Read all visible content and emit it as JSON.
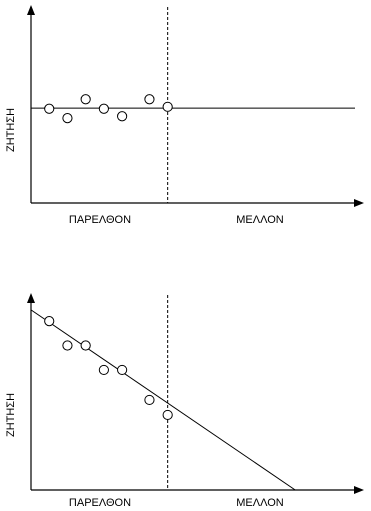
{
  "chart_data": [
    {
      "type": "scatter",
      "ylabel": "ΖΗΤΗΣΗ",
      "x_regions": [
        "ΠΑΡΕΛΘΟΝ",
        "ΜΕΛΛΟΝ"
      ],
      "trend": "horizontal",
      "points": [
        {
          "x": 1,
          "y": 5.0
        },
        {
          "x": 2,
          "y": 4.5
        },
        {
          "x": 3,
          "y": 5.5
        },
        {
          "x": 4,
          "y": 5.0
        },
        {
          "x": 5,
          "y": 4.6
        },
        {
          "x": 6.5,
          "y": 5.5
        },
        {
          "x": 7.5,
          "y": 5.1
        }
      ],
      "divider_x": 7.5,
      "xlim": [
        0,
        18
      ],
      "ylim": [
        0,
        10.5
      ]
    },
    {
      "type": "scatter",
      "ylabel": "ΖΗΤΗΣΗ",
      "x_regions": [
        "ΠΑΡΕΛΘΟΝ",
        "ΜΕΛΛΟΝ"
      ],
      "trend": "decreasing",
      "points": [
        {
          "x": 1,
          "y": 9.0
        },
        {
          "x": 2,
          "y": 7.7
        },
        {
          "x": 3,
          "y": 7.7
        },
        {
          "x": 4,
          "y": 6.4
        },
        {
          "x": 5,
          "y": 6.4
        },
        {
          "x": 6.5,
          "y": 4.8
        },
        {
          "x": 7.5,
          "y": 4.0
        }
      ],
      "fit_line": {
        "x_start": 0,
        "y_start": 9.6,
        "x_end": 14.5,
        "y_end": 0
      },
      "divider_x": 7.5,
      "xlim": [
        0,
        18
      ],
      "ylim": [
        0,
        10.5
      ]
    }
  ]
}
